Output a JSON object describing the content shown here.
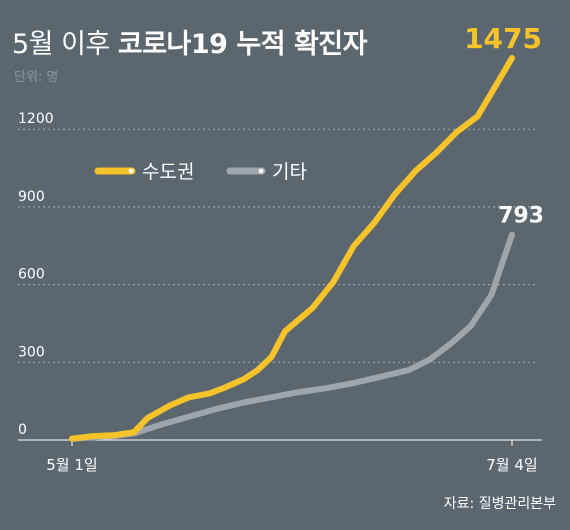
{
  "title": {
    "light": "5월 이후",
    "bold": "코로나19 누적 확진자"
  },
  "unit_label": "단위: 명",
  "source": "자료: 질병관리본부",
  "colors": {
    "background": "#5b666f",
    "capital": "#f6c42a",
    "other": "#9fa6ab",
    "grid": "#c9ced2",
    "text": "#ffffff"
  },
  "chart_data": {
    "type": "line",
    "title": "5월 이후 코로나19 누적 확진자",
    "ylabel": "단위: 명",
    "xlabel": "",
    "ylim": [
      0,
      1475
    ],
    "yticks": [
      0,
      300,
      600,
      900,
      1200
    ],
    "x_tick_labels": [
      {
        "x": "2020-05-01",
        "label": "5월 1일"
      },
      {
        "x": "2020-07-04",
        "label": "7월 4일"
      }
    ],
    "legend": "top-left",
    "grid": true,
    "series": [
      {
        "name": "수도권",
        "color": "#f6c42a",
        "end_label": "1475",
        "points": [
          [
            "2020-05-01",
            5
          ],
          [
            "2020-05-04",
            15
          ],
          [
            "2020-05-07",
            18
          ],
          [
            "2020-05-10",
            30
          ],
          [
            "2020-05-12",
            85
          ],
          [
            "2020-05-15",
            130
          ],
          [
            "2020-05-18",
            165
          ],
          [
            "2020-05-21",
            180
          ],
          [
            "2020-05-23",
            200
          ],
          [
            "2020-05-26",
            235
          ],
          [
            "2020-05-28",
            270
          ],
          [
            "2020-05-30",
            320
          ],
          [
            "2020-06-01",
            420
          ],
          [
            "2020-06-03",
            465
          ],
          [
            "2020-06-05",
            510
          ],
          [
            "2020-06-08",
            610
          ],
          [
            "2020-06-11",
            750
          ],
          [
            "2020-06-14",
            840
          ],
          [
            "2020-06-17",
            950
          ],
          [
            "2020-06-20",
            1040
          ],
          [
            "2020-06-23",
            1110
          ],
          [
            "2020-06-26",
            1190
          ],
          [
            "2020-06-29",
            1250
          ],
          [
            "2020-07-01",
            1340
          ],
          [
            "2020-07-04",
            1475
          ]
        ]
      },
      {
        "name": "기타",
        "color": "#9fa6ab",
        "end_label": "793",
        "points": [
          [
            "2020-05-01",
            5
          ],
          [
            "2020-05-04",
            10
          ],
          [
            "2020-05-07",
            15
          ],
          [
            "2020-05-10",
            25
          ],
          [
            "2020-05-14",
            60
          ],
          [
            "2020-05-18",
            90
          ],
          [
            "2020-05-22",
            120
          ],
          [
            "2020-05-26",
            145
          ],
          [
            "2020-05-30",
            165
          ],
          [
            "2020-06-03",
            185
          ],
          [
            "2020-06-07",
            200
          ],
          [
            "2020-06-11",
            220
          ],
          [
            "2020-06-15",
            245
          ],
          [
            "2020-06-19",
            270
          ],
          [
            "2020-06-22",
            310
          ],
          [
            "2020-06-25",
            370
          ],
          [
            "2020-06-28",
            440
          ],
          [
            "2020-07-01",
            560
          ],
          [
            "2020-07-04",
            793
          ]
        ]
      }
    ]
  }
}
